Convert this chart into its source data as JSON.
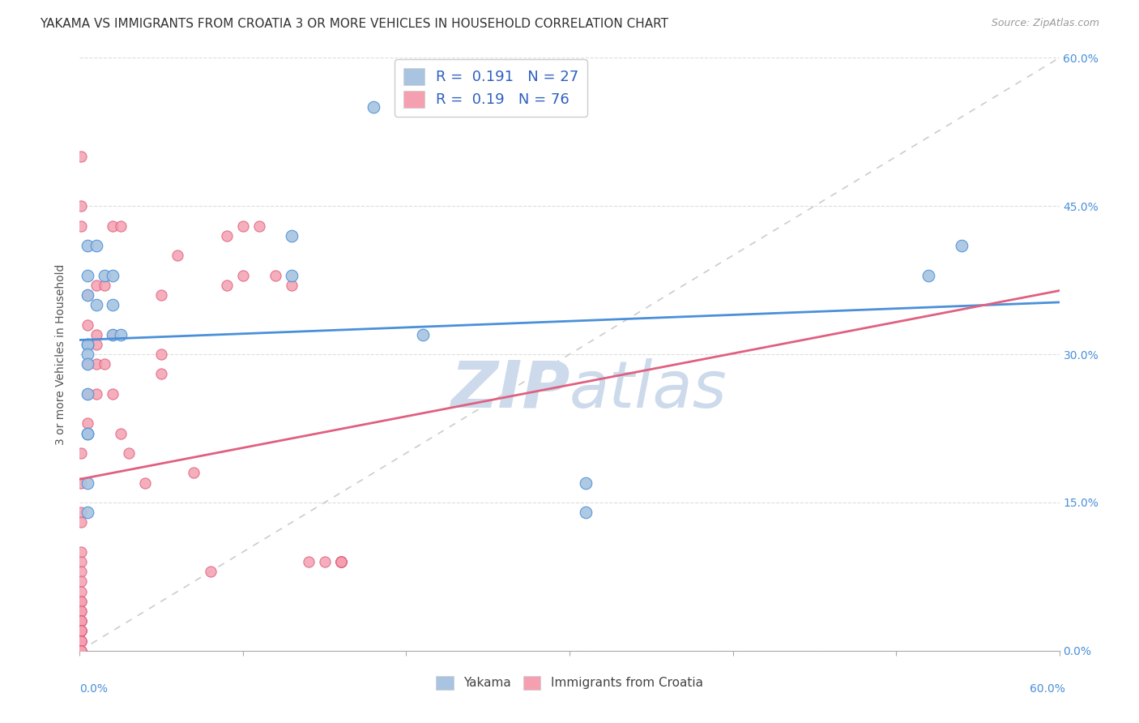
{
  "title": "YAKAMA VS IMMIGRANTS FROM CROATIA 3 OR MORE VEHICLES IN HOUSEHOLD CORRELATION CHART",
  "source": "Source: ZipAtlas.com",
  "ylabel": "3 or more Vehicles in Household",
  "xlim": [
    0.0,
    0.6
  ],
  "ylim": [
    0.0,
    0.6
  ],
  "yticks": [
    0.0,
    0.15,
    0.3,
    0.45,
    0.6
  ],
  "yticklabels_right": [
    "0.0%",
    "15.0%",
    "30.0%",
    "45.0%",
    "60.0%"
  ],
  "xtick_left_label": "0.0%",
  "xtick_right_label": "60.0%",
  "bottom_left_label": "0.0%",
  "bottom_right_label": "60.0%",
  "legend_label1": "Yakama",
  "legend_label2": "Immigrants from Croatia",
  "R1": 0.191,
  "N1": 27,
  "R2": 0.19,
  "N2": 76,
  "color1": "#a8c4e0",
  "color2": "#f4a0b0",
  "trendline1_color": "#4a90d9",
  "trendline2_color": "#e06080",
  "trendline_diagonal_color": "#cccccc",
  "watermark_color": "#cddaeb",
  "title_fontsize": 11,
  "source_fontsize": 9,
  "yakama_x": [
    0.005,
    0.005,
    0.005,
    0.005,
    0.005,
    0.005,
    0.005,
    0.005,
    0.005,
    0.005,
    0.005,
    0.01,
    0.01,
    0.015,
    0.02,
    0.02,
    0.02,
    0.025,
    0.005,
    0.13,
    0.18,
    0.21,
    0.13,
    0.31,
    0.31,
    0.52,
    0.54
  ],
  "yakama_y": [
    0.41,
    0.38,
    0.36,
    0.31,
    0.31,
    0.3,
    0.29,
    0.26,
    0.22,
    0.22,
    0.17,
    0.41,
    0.35,
    0.38,
    0.38,
    0.35,
    0.32,
    0.32,
    0.14,
    0.38,
    0.55,
    0.32,
    0.42,
    0.17,
    0.14,
    0.38,
    0.41
  ],
  "croatia_x": [
    0.0,
    0.001,
    0.001,
    0.001,
    0.001,
    0.001,
    0.001,
    0.001,
    0.001,
    0.001,
    0.001,
    0.001,
    0.001,
    0.001,
    0.001,
    0.001,
    0.001,
    0.001,
    0.001,
    0.001,
    0.001,
    0.001,
    0.001,
    0.001,
    0.001,
    0.001,
    0.001,
    0.001,
    0.001,
    0.001,
    0.001,
    0.001,
    0.001,
    0.001,
    0.005,
    0.005,
    0.005,
    0.005,
    0.005,
    0.005,
    0.01,
    0.01,
    0.01,
    0.01,
    0.01,
    0.015,
    0.015,
    0.02,
    0.02,
    0.02,
    0.025,
    0.025,
    0.03,
    0.04,
    0.05,
    0.05,
    0.05,
    0.06,
    0.07,
    0.08,
    0.09,
    0.09,
    0.1,
    0.1,
    0.11,
    0.12,
    0.13,
    0.14,
    0.15,
    0.16,
    0.16,
    0.16,
    0.16,
    0.16,
    0.16,
    0.16
  ],
  "croatia_y": [
    0.02,
    0.5,
    0.45,
    0.43,
    0.2,
    0.17,
    0.14,
    0.13,
    0.1,
    0.09,
    0.08,
    0.07,
    0.06,
    0.05,
    0.05,
    0.04,
    0.04,
    0.03,
    0.03,
    0.03,
    0.03,
    0.02,
    0.02,
    0.02,
    0.02,
    0.02,
    0.01,
    0.01,
    0.01,
    0.01,
    0.0,
    0.0,
    0.0,
    0.0,
    0.36,
    0.33,
    0.31,
    0.29,
    0.26,
    0.23,
    0.37,
    0.32,
    0.31,
    0.29,
    0.26,
    0.37,
    0.29,
    0.43,
    0.32,
    0.26,
    0.43,
    0.22,
    0.2,
    0.17,
    0.36,
    0.3,
    0.28,
    0.4,
    0.18,
    0.08,
    0.42,
    0.37,
    0.43,
    0.38,
    0.43,
    0.38,
    0.37,
    0.09,
    0.09,
    0.09,
    0.09,
    0.09,
    0.09,
    0.09,
    0.09,
    0.09
  ]
}
